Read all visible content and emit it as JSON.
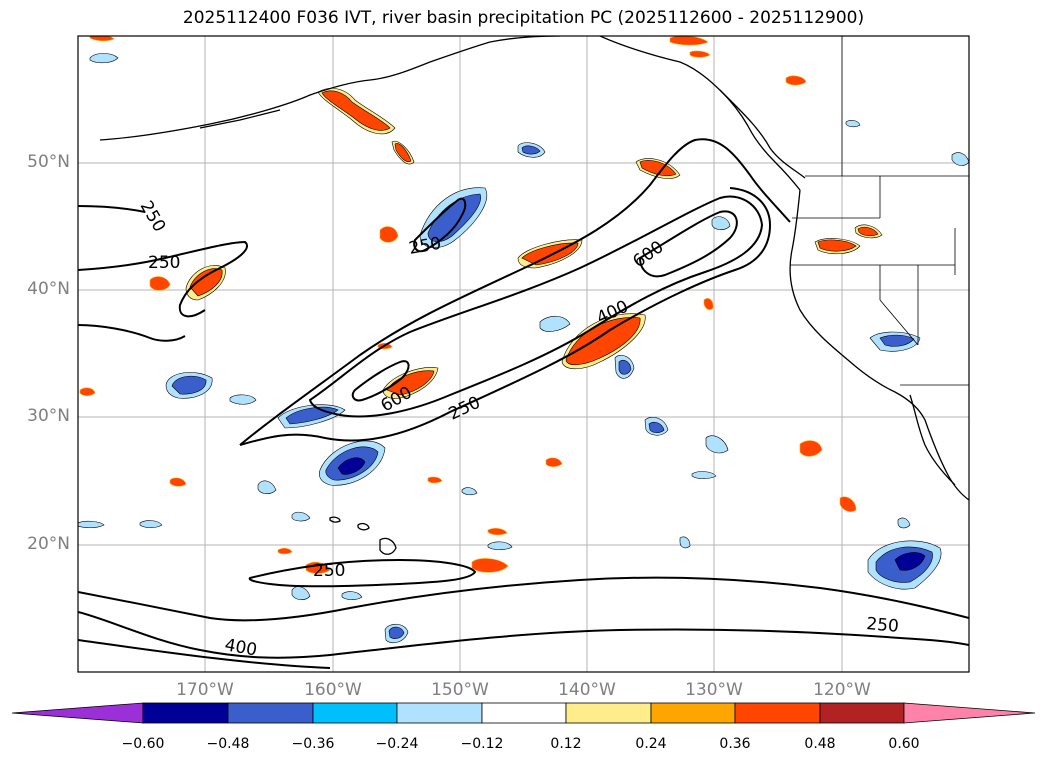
{
  "title": "2025112400 F036 IVT, river basin precipitation PC (2025112600 - 2025112900)",
  "lat_labels": [
    "50°N",
    "40°N",
    "30°N",
    "20°N"
  ],
  "lon_labels": [
    "170°W",
    "160°W",
    "150°W",
    "140°W",
    "130°W",
    "120°W"
  ],
  "contour_labels": [
    "250",
    "250",
    "250",
    "600",
    "400",
    "600",
    "250",
    "250",
    "400",
    "250"
  ],
  "colorbar": {
    "ticks": [
      "−0.60",
      "−0.48",
      "−0.36",
      "−0.24",
      "−0.12",
      "0.12",
      "0.24",
      "0.36",
      "0.48",
      "0.60"
    ],
    "colors": [
      "#9b30d9",
      "#000099",
      "#3a5fcd",
      "#00bfff",
      "#b0e2ff",
      "#ffffff",
      "#ffec8b",
      "#ffa500",
      "#ff4500",
      "#b22222",
      "#ff82ab"
    ]
  },
  "map": {
    "extent_lon": [
      -180,
      -110
    ],
    "extent_lat": [
      10,
      60
    ],
    "contour_levels": [
      250,
      400,
      600
    ]
  }
}
